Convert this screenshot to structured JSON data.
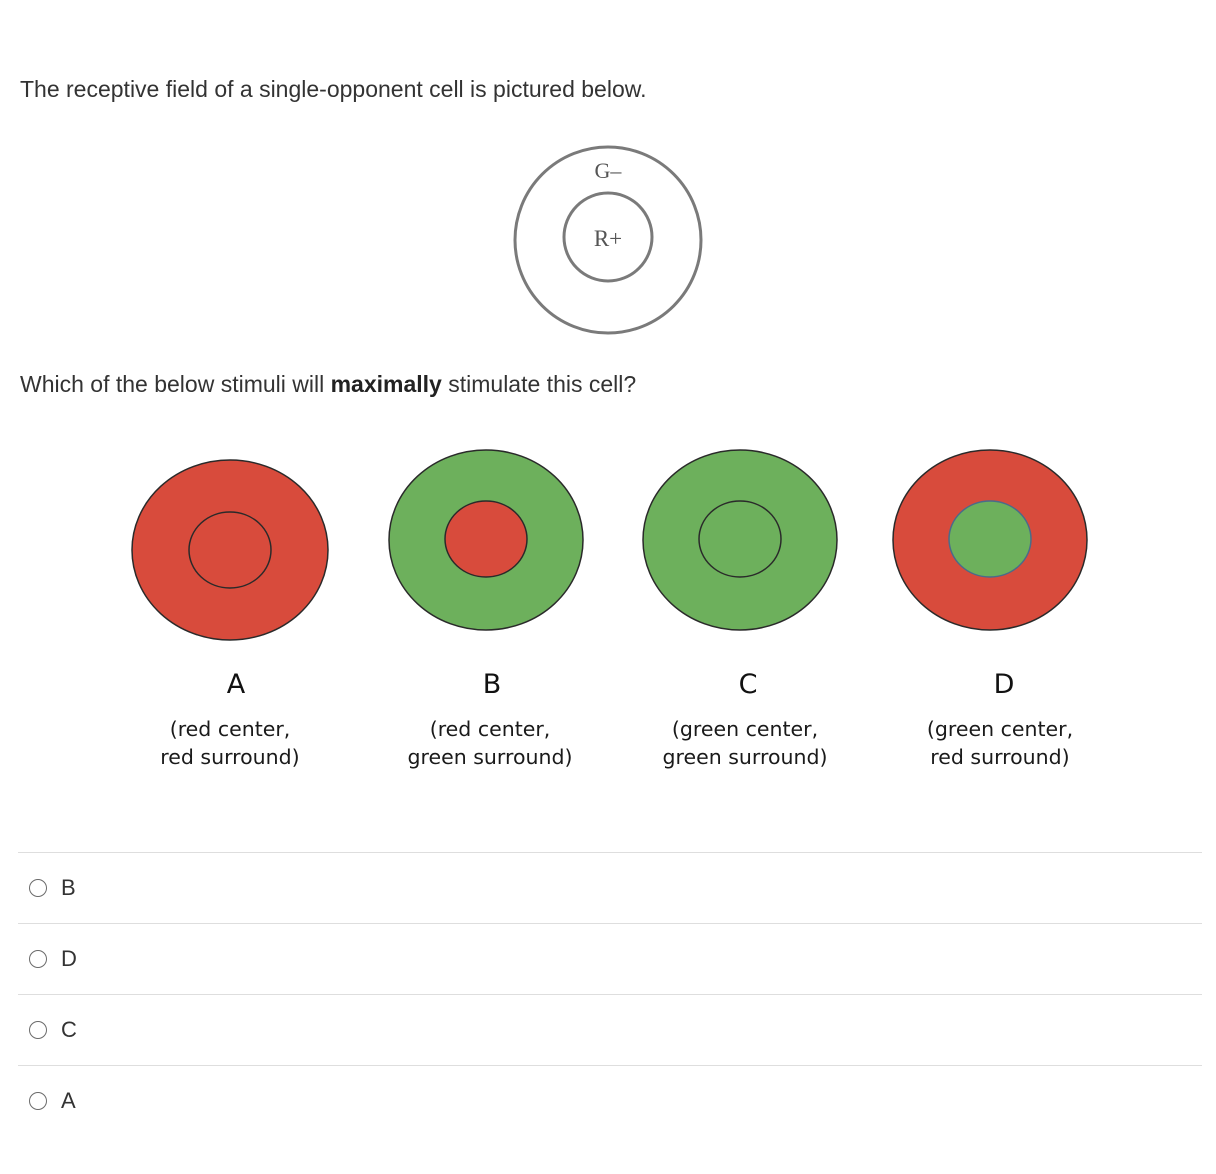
{
  "question": {
    "intro": "The receptive field of a single-opponent cell is pictured below.",
    "prompt_before": "Which of the below stimuli will ",
    "prompt_emphasis": "maximally",
    "prompt_after": " stimulate this cell?"
  },
  "receptive_field": {
    "surround_label": "G–",
    "center_label": "R+"
  },
  "colors": {
    "red": "#d84b3c",
    "green": "#6db05c"
  },
  "stimuli": [
    {
      "letter": "A",
      "desc_line1": "(red center,",
      "desc_line2": "red surround)",
      "center": "red",
      "surround": "red"
    },
    {
      "letter": "B",
      "desc_line1": "(red center,",
      "desc_line2": "green surround)",
      "center": "red",
      "surround": "green"
    },
    {
      "letter": "C",
      "desc_line1": "(green center,",
      "desc_line2": "green surround)",
      "center": "green",
      "surround": "green"
    },
    {
      "letter": "D",
      "desc_line1": "(green center,",
      "desc_line2": "red surround)",
      "center": "green",
      "surround": "red"
    }
  ],
  "options": [
    {
      "label": "B"
    },
    {
      "label": "D"
    },
    {
      "label": "C"
    },
    {
      "label": "A"
    }
  ]
}
